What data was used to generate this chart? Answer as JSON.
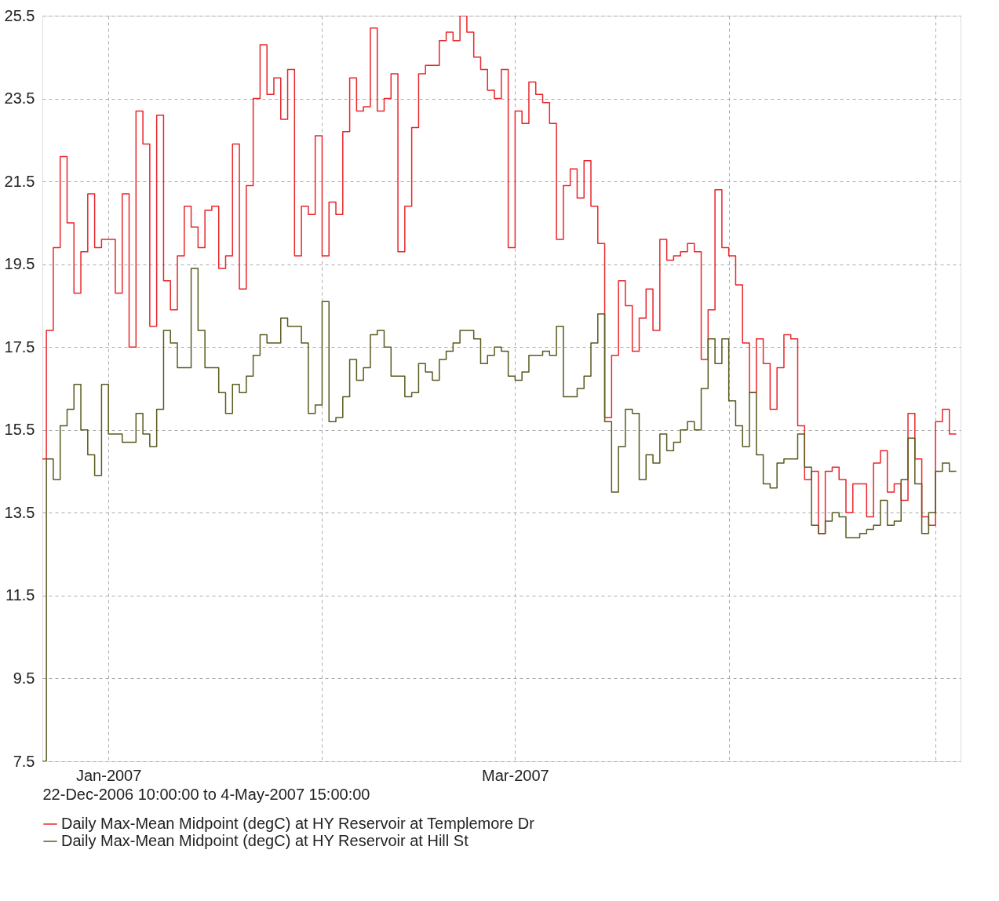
{
  "chart_data": {
    "type": "step",
    "xlabel": "22-Dec-2006 10:00:00 to  4-May-2007 15:00:00",
    "x": [
      "2006-12-22T10:00",
      "2006-12-23",
      "2006-12-24",
      "2006-12-25",
      "2006-12-26",
      "2006-12-27",
      "2006-12-28",
      "2006-12-29",
      "2006-12-30",
      "2006-12-31",
      "2007-01-01",
      "2007-01-02",
      "2007-01-03",
      "2007-01-04",
      "2007-01-05",
      "2007-01-06",
      "2007-01-07",
      "2007-01-08",
      "2007-01-09",
      "2007-01-10",
      "2007-01-11",
      "2007-01-12",
      "2007-01-13",
      "2007-01-14",
      "2007-01-15",
      "2007-01-16",
      "2007-01-17",
      "2007-01-18",
      "2007-01-19",
      "2007-01-20",
      "2007-01-21",
      "2007-01-22",
      "2007-01-23",
      "2007-01-24",
      "2007-01-25",
      "2007-01-26",
      "2007-01-27",
      "2007-01-28",
      "2007-01-29",
      "2007-01-30",
      "2007-01-31",
      "2007-02-01",
      "2007-02-02",
      "2007-02-03",
      "2007-02-04",
      "2007-02-05",
      "2007-02-06",
      "2007-02-07",
      "2007-02-08",
      "2007-02-09",
      "2007-02-10",
      "2007-02-11",
      "2007-02-12",
      "2007-02-13",
      "2007-02-14",
      "2007-02-15",
      "2007-02-16",
      "2007-02-17",
      "2007-02-18",
      "2007-02-19",
      "2007-02-20",
      "2007-02-21",
      "2007-02-22",
      "2007-02-23",
      "2007-02-24",
      "2007-02-25",
      "2007-02-26",
      "2007-02-27",
      "2007-02-28",
      "2007-03-01",
      "2007-03-02",
      "2007-03-03",
      "2007-03-04",
      "2007-03-05",
      "2007-03-06",
      "2007-03-07",
      "2007-03-08",
      "2007-03-09",
      "2007-03-10",
      "2007-03-11",
      "2007-03-12",
      "2007-03-13",
      "2007-03-14",
      "2007-03-15",
      "2007-03-16",
      "2007-03-17",
      "2007-03-18",
      "2007-03-19",
      "2007-03-20",
      "2007-03-21",
      "2007-03-22",
      "2007-03-23",
      "2007-03-24",
      "2007-03-25",
      "2007-03-26",
      "2007-03-27",
      "2007-03-28",
      "2007-03-29",
      "2007-03-30",
      "2007-03-31",
      "2007-04-01",
      "2007-04-02",
      "2007-04-03",
      "2007-04-04",
      "2007-04-05",
      "2007-04-06",
      "2007-04-07",
      "2007-04-08",
      "2007-04-09",
      "2007-04-10",
      "2007-04-11",
      "2007-04-12",
      "2007-04-13",
      "2007-04-14",
      "2007-04-15",
      "2007-04-16",
      "2007-04-17",
      "2007-04-18",
      "2007-04-19",
      "2007-04-20",
      "2007-04-21",
      "2007-04-22",
      "2007-04-23",
      "2007-04-24",
      "2007-04-25",
      "2007-04-26",
      "2007-04-27",
      "2007-04-28",
      "2007-04-29",
      "2007-04-30",
      "2007-05-01",
      "2007-05-02",
      "2007-05-03",
      "2007-05-04"
    ],
    "series": [
      {
        "name": "Daily Max-Mean Midpoint (degC) at HY Reservoir at Templemore Dr",
        "color": "#e8262b",
        "values": [
          14.8,
          17.9,
          19.9,
          22.1,
          20.5,
          18.8,
          19.8,
          21.2,
          19.9,
          20.1,
          20.1,
          18.8,
          21.2,
          17.5,
          23.2,
          22.4,
          18.0,
          23.1,
          19.1,
          18.4,
          19.7,
          20.9,
          20.4,
          19.9,
          20.8,
          20.9,
          19.4,
          19.7,
          22.4,
          18.9,
          21.4,
          23.5,
          24.8,
          23.6,
          24.0,
          23.0,
          24.2,
          19.7,
          20.9,
          20.7,
          22.6,
          19.7,
          21.0,
          20.7,
          22.7,
          24.0,
          23.2,
          23.3,
          25.2,
          23.2,
          23.5,
          24.1,
          19.8,
          20.9,
          22.8,
          24.1,
          24.3,
          24.3,
          24.9,
          25.1,
          24.9,
          25.5,
          25.1,
          24.5,
          24.2,
          23.7,
          23.5,
          24.2,
          19.9,
          23.2,
          22.9,
          23.9,
          23.6,
          23.4,
          22.9,
          20.1,
          21.4,
          21.8,
          21.1,
          22.0,
          20.9,
          20.0,
          15.8,
          17.3,
          19.1,
          18.5,
          17.4,
          18.2,
          18.9,
          17.9,
          20.1,
          19.6,
          19.7,
          19.8,
          20.0,
          19.8,
          17.2,
          18.4,
          21.3,
          19.9,
          19.7,
          19.0,
          17.6,
          16.4,
          17.7,
          17.1,
          16.0,
          17.0,
          17.8,
          17.7,
          15.6,
          14.3,
          14.5,
          13.0,
          14.5,
          14.6,
          14.3,
          13.5,
          14.2,
          14.2,
          13.4,
          14.7,
          15.0,
          14.0,
          14.2,
          13.8,
          15.9,
          14.8,
          13.4,
          13.2,
          15.7,
          16.0,
          15.4,
          15.4
        ]
      },
      {
        "name": "Daily Max-Mean Midpoint (degC) at HY Reservoir at Hill St",
        "color": "#5a5a1e",
        "values": [
          7.5,
          14.8,
          14.3,
          15.6,
          16.0,
          16.6,
          15.5,
          14.9,
          14.4,
          16.6,
          15.4,
          15.4,
          15.2,
          15.2,
          15.9,
          15.4,
          15.1,
          16.0,
          17.9,
          17.6,
          17.0,
          17.0,
          19.4,
          17.9,
          17.0,
          17.0,
          16.4,
          15.9,
          16.6,
          16.4,
          16.8,
          17.3,
          17.8,
          17.6,
          17.6,
          18.2,
          18.0,
          18.0,
          17.6,
          15.9,
          16.1,
          18.6,
          15.7,
          15.8,
          16.3,
          17.2,
          16.7,
          17.0,
          17.8,
          17.9,
          17.5,
          16.8,
          16.8,
          16.3,
          16.4,
          17.1,
          16.9,
          16.7,
          17.2,
          17.4,
          17.6,
          17.9,
          17.9,
          17.7,
          17.1,
          17.3,
          17.5,
          17.4,
          16.8,
          16.7,
          16.9,
          17.3,
          17.3,
          17.4,
          17.3,
          18.0,
          16.3,
          16.3,
          16.5,
          16.8,
          17.6,
          18.3,
          15.7,
          14.0,
          15.1,
          16.0,
          15.9,
          14.3,
          14.9,
          14.7,
          15.4,
          15.0,
          15.2,
          15.5,
          15.7,
          15.5,
          16.5,
          17.7,
          17.1,
          17.7,
          16.2,
          15.6,
          15.1,
          16.4,
          14.9,
          14.2,
          14.1,
          14.7,
          14.8,
          14.8,
          15.4,
          14.6,
          13.2,
          13.0,
          13.3,
          13.5,
          13.4,
          12.9,
          12.9,
          13.0,
          13.1,
          13.2,
          13.8,
          13.2,
          13.3,
          14.3,
          15.3,
          14.2,
          13.0,
          13.5,
          14.5,
          14.7,
          14.5,
          14.5
        ]
      }
    ],
    "xlim": [
      "2006-12-22T10:00",
      "2007-05-04T15:00"
    ],
    "xticks": [
      {
        "value": "2007-01-01",
        "label": "Jan-2007"
      },
      {
        "value": "2007-02-01",
        "label": null
      },
      {
        "value": "2007-03-01",
        "label": "Mar-2007"
      },
      {
        "value": "2007-04-01",
        "label": null
      },
      {
        "value": "2007-05-01",
        "label": null
      }
    ],
    "ylim": [
      7.5,
      25.5
    ],
    "yticks": [
      7.5,
      9.5,
      11.5,
      13.5,
      15.5,
      17.5,
      19.5,
      21.5,
      23.5,
      25.5
    ],
    "grid": true,
    "legend": "bottom",
    "marker": "none",
    "line_style": "solid"
  }
}
